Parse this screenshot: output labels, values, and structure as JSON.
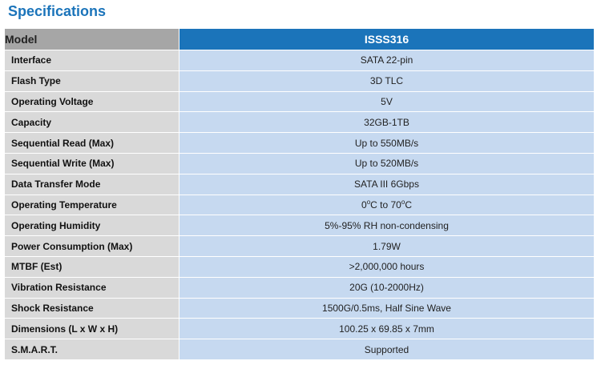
{
  "title": "Specifications",
  "header": {
    "label": "Model",
    "value": "ISSS316"
  },
  "rows": [
    {
      "label": "Interface",
      "value": "SATA 22-pin"
    },
    {
      "label": "Flash Type",
      "value": "3D TLC"
    },
    {
      "label": "Operating Voltage",
      "value": "5V"
    },
    {
      "label": "Capacity",
      "value": "32GB-1TB"
    },
    {
      "label": "Sequential Read (Max)",
      "value": "Up to 550MB/s"
    },
    {
      "label": "Sequential Write (Max)",
      "value": "Up to 520MB/s"
    },
    {
      "label": "Data Transfer Mode",
      "value": "SATA III 6Gbps"
    },
    {
      "label": "Operating Temperature",
      "value_parts": [
        "0",
        "o",
        "C to 70",
        "o",
        "C"
      ]
    },
    {
      "label": "Operating Humidity",
      "value": "5%-95% RH non-condensing"
    },
    {
      "label": "Power Consumption (Max)",
      "value": "1.79W"
    },
    {
      "label": "MTBF (Est)",
      "value": ">2,000,000 hours"
    },
    {
      "label": "Vibration Resistance",
      "value": "20G (10-2000Hz)"
    },
    {
      "label": "Shock Resistance",
      "value": "1500G/0.5ms, Half Sine Wave"
    },
    {
      "label": "Dimensions (L x W x H)",
      "value": "100.25 x 69.85 x 7mm"
    },
    {
      "label": "S.M.A.R.T.",
      "value": "Supported"
    }
  ],
  "colors": {
    "accent": "#1b74ba",
    "label_bg": "#d9d9d9",
    "value_bg": "#c6d9f0",
    "header_label_bg": "#a6a6a6"
  }
}
